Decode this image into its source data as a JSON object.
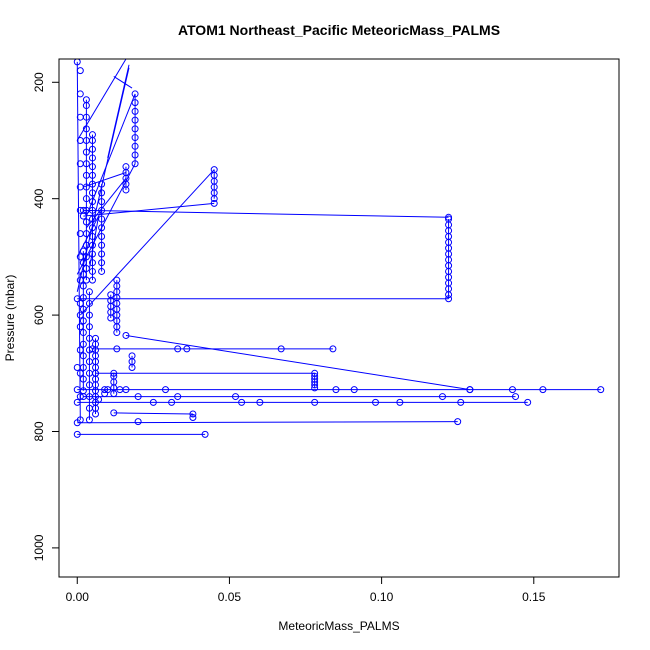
{
  "chart_data": {
    "type": "scatter",
    "title": "ATOM1 Northeast_Pacific MeteoricMass_PALMS",
    "xlabel": "MeteoricMass_PALMS",
    "ylabel": "Pressure (mbar)",
    "xlim": [
      -0.006,
      0.178
    ],
    "ylim": [
      1050,
      160
    ],
    "y_reversed": true,
    "xticks": [
      0.0,
      0.05,
      0.1,
      0.15
    ],
    "xtick_labels": [
      "0.00",
      "0.05",
      "0.10",
      "0.15"
    ],
    "yticks": [
      200,
      400,
      600,
      800,
      1000
    ],
    "ytick_labels": [
      "200",
      "400",
      "600",
      "800",
      "1000"
    ],
    "grid": false,
    "legend": "none",
    "series_color": "#0000ff",
    "marker": "open-circle",
    "connected": true,
    "series": [
      {
        "points": [
          [
            0.0,
            805
          ],
          [
            0.042,
            805
          ],
          [
            0.0,
            785
          ],
          [
            0.02,
            783
          ],
          [
            0.125,
            783
          ],
          [
            0.012,
            768
          ],
          [
            0.038,
            770
          ],
          [
            0.038,
            776
          ],
          [
            0.0,
            750
          ],
          [
            0.025,
            750
          ],
          [
            0.031,
            750
          ],
          [
            0.054,
            750
          ],
          [
            0.06,
            750
          ],
          [
            0.078,
            750
          ],
          [
            0.098,
            750
          ],
          [
            0.106,
            750
          ],
          [
            0.126,
            750
          ],
          [
            0.148,
            750
          ],
          [
            0.002,
            740
          ],
          [
            0.02,
            740
          ],
          [
            0.033,
            740
          ],
          [
            0.052,
            740
          ],
          [
            0.12,
            740
          ],
          [
            0.144,
            740
          ],
          [
            0.0,
            728
          ],
          [
            0.016,
            728
          ],
          [
            0.029,
            728
          ],
          [
            0.085,
            728
          ],
          [
            0.091,
            728
          ],
          [
            0.129,
            728
          ],
          [
            0.143,
            728
          ],
          [
            0.153,
            728
          ],
          [
            0.172,
            728
          ],
          [
            0.006,
            700
          ],
          [
            0.078,
            700
          ],
          [
            0.078,
            705
          ],
          [
            0.078,
            710
          ],
          [
            0.078,
            715
          ],
          [
            0.078,
            720
          ],
          [
            0.078,
            725
          ],
          [
            0.0,
            690
          ],
          [
            0.018,
            690
          ],
          [
            0.018,
            680
          ],
          [
            0.018,
            670
          ],
          [
            0.005,
            658
          ],
          [
            0.013,
            658
          ],
          [
            0.033,
            658
          ],
          [
            0.036,
            658
          ],
          [
            0.067,
            658
          ],
          [
            0.084,
            658
          ],
          [
            0.016,
            635
          ],
          [
            0.129,
            728
          ],
          [
            0.0,
            572
          ],
          [
            0.122,
            572
          ],
          [
            0.122,
            565
          ],
          [
            0.122,
            555
          ],
          [
            0.122,
            545
          ],
          [
            0.122,
            535
          ],
          [
            0.122,
            525
          ],
          [
            0.122,
            515
          ],
          [
            0.122,
            505
          ],
          [
            0.122,
            495
          ],
          [
            0.122,
            485
          ],
          [
            0.122,
            475
          ],
          [
            0.122,
            465
          ],
          [
            0.122,
            455
          ],
          [
            0.122,
            445
          ],
          [
            0.122,
            435
          ],
          [
            0.002,
            420
          ],
          [
            0.122,
            432
          ],
          [
            0.013,
            630
          ],
          [
            0.013,
            620
          ],
          [
            0.013,
            610
          ],
          [
            0.013,
            600
          ],
          [
            0.013,
            590
          ],
          [
            0.013,
            580
          ],
          [
            0.013,
            570
          ],
          [
            0.013,
            560
          ],
          [
            0.013,
            550
          ],
          [
            0.013,
            540
          ],
          [
            0.011,
            605
          ],
          [
            0.011,
            595
          ],
          [
            0.011,
            585
          ],
          [
            0.011,
            575
          ],
          [
            0.011,
            565
          ],
          [
            0.001,
            600
          ],
          [
            0.045,
            400
          ],
          [
            0.045,
            390
          ],
          [
            0.045,
            380
          ],
          [
            0.045,
            370
          ],
          [
            0.045,
            360
          ],
          [
            0.045,
            350
          ],
          [
            0.002,
            430
          ],
          [
            0.045,
            408
          ],
          [
            0.008,
            525
          ],
          [
            0.008,
            510
          ],
          [
            0.008,
            495
          ],
          [
            0.008,
            480
          ],
          [
            0.008,
            465
          ],
          [
            0.008,
            450
          ],
          [
            0.008,
            435
          ],
          [
            0.008,
            420
          ],
          [
            0.008,
            405
          ],
          [
            0.008,
            390
          ],
          [
            0.008,
            375
          ],
          [
            0.005,
            540
          ],
          [
            0.005,
            525
          ],
          [
            0.005,
            510
          ],
          [
            0.005,
            495
          ],
          [
            0.005,
            480
          ],
          [
            0.005,
            465
          ],
          [
            0.005,
            450
          ],
          [
            0.005,
            435
          ],
          [
            0.005,
            420
          ],
          [
            0.005,
            405
          ],
          [
            0.005,
            390
          ],
          [
            0.005,
            375
          ],
          [
            0.005,
            360
          ],
          [
            0.005,
            345
          ],
          [
            0.005,
            330
          ],
          [
            0.005,
            315
          ],
          [
            0.005,
            300
          ],
          [
            0.005,
            290
          ],
          [
            0.016,
            385
          ],
          [
            0.016,
            375
          ],
          [
            0.016,
            365
          ],
          [
            0.016,
            355
          ],
          [
            0.016,
            345
          ],
          [
            0.019,
            340
          ],
          [
            0.019,
            325
          ],
          [
            0.019,
            310
          ],
          [
            0.019,
            295
          ],
          [
            0.019,
            280
          ],
          [
            0.019,
            265
          ],
          [
            0.019,
            250
          ],
          [
            0.019,
            235
          ],
          [
            0.019,
            220
          ],
          [
            0.003,
            540
          ],
          [
            0.003,
            520
          ],
          [
            0.003,
            500
          ],
          [
            0.003,
            480
          ],
          [
            0.003,
            460
          ],
          [
            0.003,
            440
          ],
          [
            0.003,
            420
          ],
          [
            0.003,
            400
          ],
          [
            0.003,
            380
          ],
          [
            0.003,
            360
          ],
          [
            0.003,
            340
          ],
          [
            0.003,
            320
          ],
          [
            0.003,
            300
          ],
          [
            0.003,
            280
          ],
          [
            0.003,
            260
          ],
          [
            0.003,
            240
          ],
          [
            0.003,
            230
          ],
          [
            0.001,
            780
          ],
          [
            0.001,
            740
          ],
          [
            0.001,
            700
          ],
          [
            0.001,
            660
          ],
          [
            0.001,
            620
          ],
          [
            0.001,
            580
          ],
          [
            0.001,
            540
          ],
          [
            0.001,
            500
          ],
          [
            0.001,
            460
          ],
          [
            0.001,
            420
          ],
          [
            0.001,
            380
          ],
          [
            0.001,
            340
          ],
          [
            0.001,
            300
          ],
          [
            0.001,
            260
          ],
          [
            0.001,
            220
          ],
          [
            0.001,
            180
          ],
          [
            0.0,
            165
          ],
          [
            0.002,
            730
          ],
          [
            0.002,
            710
          ],
          [
            0.002,
            690
          ],
          [
            0.002,
            670
          ],
          [
            0.002,
            650
          ],
          [
            0.002,
            630
          ],
          [
            0.002,
            610
          ],
          [
            0.002,
            590
          ],
          [
            0.002,
            570
          ],
          [
            0.002,
            550
          ],
          [
            0.002,
            530
          ],
          [
            0.002,
            510
          ],
          [
            0.002,
            490
          ],
          [
            0.006,
            770
          ],
          [
            0.006,
            760
          ],
          [
            0.006,
            750
          ],
          [
            0.006,
            740
          ],
          [
            0.006,
            730
          ],
          [
            0.006,
            720
          ],
          [
            0.006,
            710
          ],
          [
            0.006,
            700
          ],
          [
            0.006,
            690
          ],
          [
            0.006,
            680
          ],
          [
            0.006,
            670
          ],
          [
            0.006,
            660
          ],
          [
            0.006,
            650
          ],
          [
            0.006,
            640
          ],
          [
            0.004,
            780
          ],
          [
            0.004,
            760
          ],
          [
            0.004,
            740
          ],
          [
            0.004,
            720
          ],
          [
            0.004,
            700
          ],
          [
            0.004,
            680
          ],
          [
            0.004,
            660
          ],
          [
            0.004,
            640
          ],
          [
            0.004,
            620
          ],
          [
            0.004,
            600
          ],
          [
            0.004,
            580
          ],
          [
            0.004,
            560
          ],
          [
            0.012,
            735
          ],
          [
            0.012,
            725
          ],
          [
            0.012,
            715
          ],
          [
            0.012,
            705
          ],
          [
            0.012,
            700
          ],
          [
            0.009,
            735
          ],
          [
            0.009,
            728
          ],
          [
            0.007,
            745
          ],
          [
            0.01,
            728
          ],
          [
            0.014,
            728
          ]
        ]
      }
    ],
    "line_segments": [
      [
        [
          0.0,
          805
        ],
        [
          0.042,
          805
        ]
      ],
      [
        [
          0.0,
          785
        ],
        [
          0.125,
          783
        ]
      ],
      [
        [
          0.012,
          768
        ],
        [
          0.038,
          770
        ]
      ],
      [
        [
          0.0,
          750
        ],
        [
          0.148,
          750
        ]
      ],
      [
        [
          0.002,
          740
        ],
        [
          0.144,
          740
        ]
      ],
      [
        [
          0.0,
          728
        ],
        [
          0.172,
          728
        ]
      ],
      [
        [
          0.016,
          635
        ],
        [
          0.129,
          728
        ]
      ],
      [
        [
          0.006,
          700
        ],
        [
          0.078,
          700
        ]
      ],
      [
        [
          0.005,
          658
        ],
        [
          0.084,
          658
        ]
      ],
      [
        [
          0.0,
          572
        ],
        [
          0.122,
          572
        ]
      ],
      [
        [
          0.002,
          420
        ],
        [
          0.122,
          432
        ]
      ],
      [
        [
          0.002,
          430
        ],
        [
          0.045,
          408
        ]
      ],
      [
        [
          0.001,
          600
        ],
        [
          0.045,
          350
        ]
      ],
      [
        [
          0.0,
          530
        ],
        [
          0.019,
          340
        ]
      ],
      [
        [
          0.003,
          450
        ],
        [
          0.016,
          365
        ]
      ],
      [
        [
          0.002,
          380
        ],
        [
          0.016,
          355
        ]
      ],
      [
        [
          0.0,
          500
        ],
        [
          0.008,
          420
        ]
      ],
      [
        [
          0.003,
          430
        ],
        [
          0.019,
          220
        ]
      ],
      [
        [
          0.0,
          560
        ],
        [
          0.017,
          175
        ]
      ],
      [
        [
          0.01,
          330
        ],
        [
          0.017,
          170
        ]
      ],
      [
        [
          0.018,
          210
        ],
        [
          0.012,
          190
        ]
      ],
      [
        [
          0.0,
          300
        ],
        [
          0.016,
          160
        ]
      ],
      [
        [
          0.004,
          520
        ],
        [
          0.007,
          430
        ]
      ],
      [
        [
          0.001,
          780
        ],
        [
          0.0,
          165
        ]
      ],
      [
        [
          0.002,
          730
        ],
        [
          0.002,
          490
        ]
      ],
      [
        [
          0.006,
          770
        ],
        [
          0.006,
          640
        ]
      ],
      [
        [
          0.004,
          780
        ],
        [
          0.004,
          560
        ]
      ],
      [
        [
          0.003,
          540
        ],
        [
          0.003,
          230
        ]
      ],
      [
        [
          0.005,
          540
        ],
        [
          0.005,
          290
        ]
      ],
      [
        [
          0.008,
          525
        ],
        [
          0.008,
          375
        ]
      ],
      [
        [
          0.013,
          630
        ],
        [
          0.013,
          540
        ]
      ],
      [
        [
          0.011,
          605
        ],
        [
          0.011,
          565
        ]
      ],
      [
        [
          0.016,
          385
        ],
        [
          0.016,
          345
        ]
      ],
      [
        [
          0.019,
          340
        ],
        [
          0.019,
          220
        ]
      ],
      [
        [
          0.122,
          572
        ],
        [
          0.122,
          435
        ]
      ],
      [
        [
          0.045,
          400
        ],
        [
          0.045,
          350
        ]
      ],
      [
        [
          0.078,
          725
        ],
        [
          0.078,
          700
        ]
      ],
      [
        [
          0.012,
          735
        ],
        [
          0.012,
          700
        ]
      ],
      [
        [
          0.018,
          690
        ],
        [
          0.018,
          670
        ]
      ],
      [
        [
          0.038,
          770
        ],
        [
          0.038,
          776
        ]
      ]
    ]
  }
}
